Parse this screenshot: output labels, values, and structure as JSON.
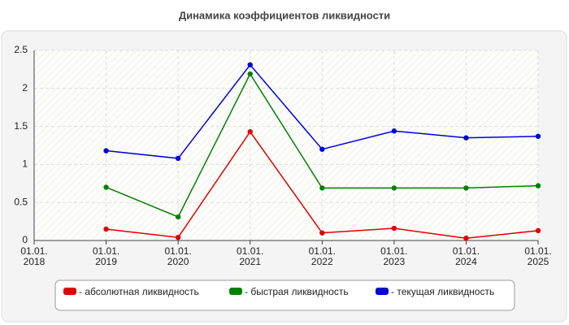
{
  "chart_data": {
    "type": "line",
    "title": "Динамика коэффициентов ликвидности",
    "categories": [
      "01.01. 2018",
      "01.01. 2019",
      "01.01. 2020",
      "01.01. 2021",
      "01.01. 2022",
      "01.01. 2023",
      "01.01. 2024",
      "01.01. 2025"
    ],
    "series": [
      {
        "name": "- абсолютная ликвидность",
        "color": "#e00000",
        "values": [
          null,
          0.15,
          0.04,
          1.43,
          0.1,
          0.16,
          0.03,
          0.13
        ]
      },
      {
        "name": "- быстрая ликвидность",
        "color": "#008000",
        "values": [
          null,
          0.7,
          0.31,
          2.19,
          0.69,
          0.69,
          0.69,
          0.72
        ]
      },
      {
        "name": "- текущая ликвидность",
        "color": "#0000e0",
        "values": [
          null,
          1.18,
          1.08,
          2.31,
          1.2,
          1.44,
          1.35,
          1.37
        ]
      }
    ],
    "ylim": [
      0,
      2.5
    ],
    "yticks": [
      0,
      0.5,
      1,
      1.5,
      2,
      2.5
    ],
    "grid": true
  }
}
